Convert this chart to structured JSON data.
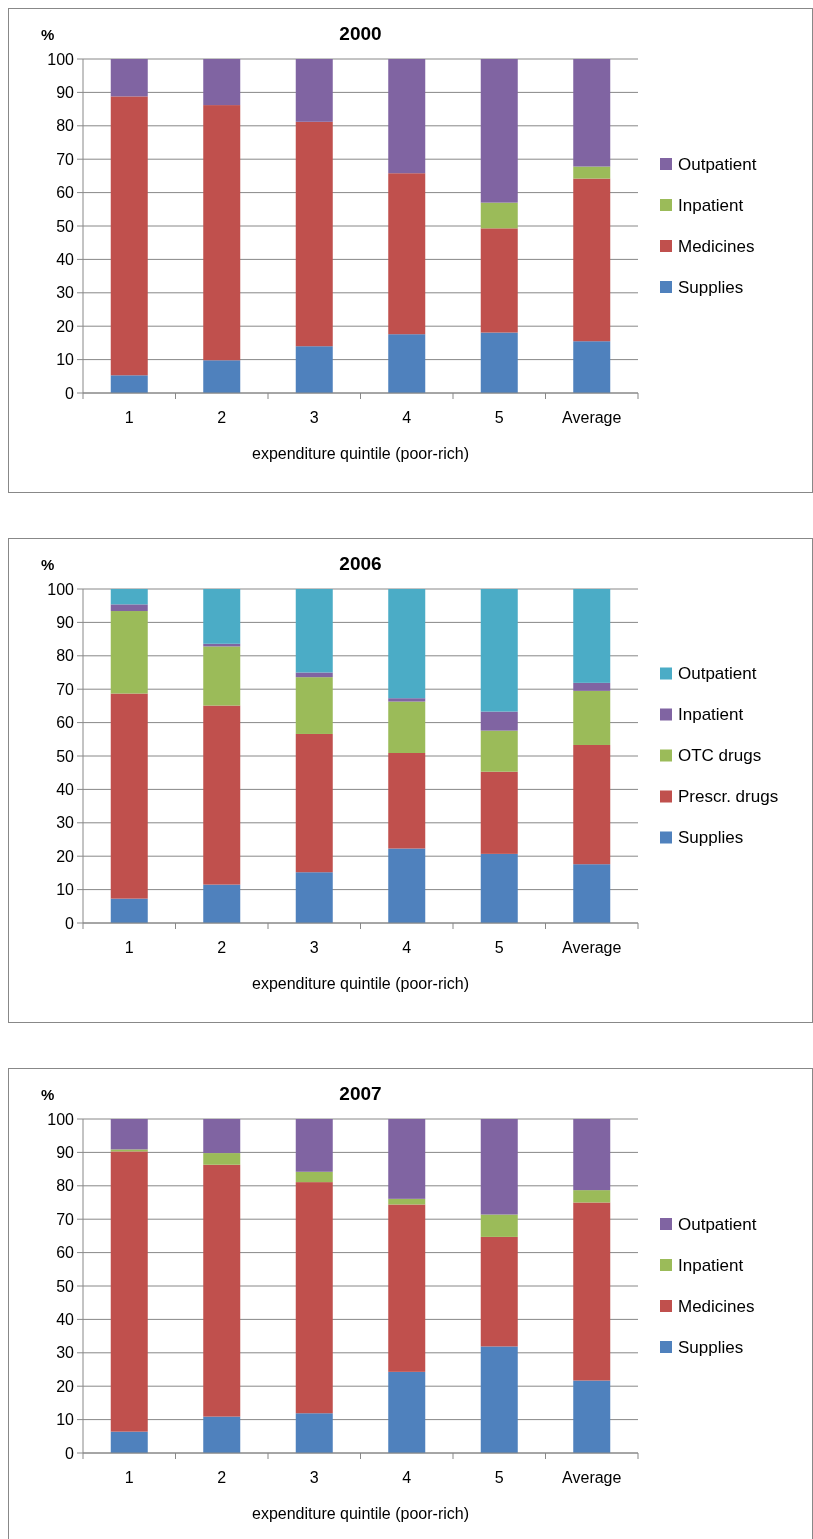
{
  "chart_data": [
    {
      "type": "bar",
      "title": "2000",
      "ylabel": "%",
      "xlabel": "expenditure quintile (poor-rich)",
      "categories": [
        "1",
        "2",
        "3",
        "4",
        "5",
        "Average"
      ],
      "stacked": true,
      "ylim": [
        0,
        100
      ],
      "yticks": [
        0,
        10,
        20,
        30,
        40,
        50,
        60,
        70,
        80,
        90,
        100
      ],
      "grid": "y",
      "legend": "right",
      "series": [
        {
          "name": "Supplies",
          "color": "#4f81bd",
          "values": [
            5.3,
            9.8,
            14,
            17.6,
            18.1,
            15.5
          ]
        },
        {
          "name": "Medicines",
          "color": "#c0504d",
          "values": [
            83.5,
            76.4,
            67.2,
            48.2,
            31.2,
            48.7
          ]
        },
        {
          "name": "Inpatient",
          "color": "#9bbb59",
          "values": [
            0,
            0,
            0,
            0,
            7.7,
            3.6
          ]
        },
        {
          "name": "Outpatient",
          "color": "#8064a2",
          "values": [
            11.2,
            13.8,
            18.8,
            34.2,
            43,
            32.2
          ]
        }
      ]
    },
    {
      "type": "bar",
      "title": "2006",
      "ylabel": "%",
      "xlabel": "expenditure quintile (poor-rich)",
      "categories": [
        "1",
        "2",
        "3",
        "4",
        "5",
        "Average"
      ],
      "stacked": true,
      "ylim": [
        0,
        100
      ],
      "yticks": [
        0,
        10,
        20,
        30,
        40,
        50,
        60,
        70,
        80,
        90,
        100
      ],
      "grid": "y",
      "legend": "right",
      "series": [
        {
          "name": "Supplies",
          "color": "#4f81bd",
          "values": [
            7.3,
            11.5,
            15.2,
            22.3,
            20.7,
            17.6
          ]
        },
        {
          "name": "Prescr. drugs",
          "color": "#c0504d",
          "values": [
            61.4,
            53.6,
            41.4,
            28.6,
            24.6,
            35.7
          ]
        },
        {
          "name": "OTC drugs",
          "color": "#9bbb59",
          "values": [
            24.7,
            17.7,
            17,
            15.4,
            12.3,
            16.2
          ]
        },
        {
          "name": "Inpatient",
          "color": "#8064a2",
          "values": [
            2,
            0.8,
            1.4,
            1,
            5.7,
            2.4
          ]
        },
        {
          "name": "Outpatient",
          "color": "#4bacc6",
          "values": [
            4.6,
            16.4,
            25,
            32.7,
            36.7,
            28.1
          ]
        }
      ]
    },
    {
      "type": "bar",
      "title": "2007",
      "ylabel": "%",
      "xlabel": "expenditure quintile (poor-rich)",
      "categories": [
        "1",
        "2",
        "3",
        "4",
        "5",
        "Average"
      ],
      "stacked": true,
      "ylim": [
        0,
        100
      ],
      "yticks": [
        0,
        10,
        20,
        30,
        40,
        50,
        60,
        70,
        80,
        90,
        100
      ],
      "grid": "y",
      "legend": "right",
      "series": [
        {
          "name": "Supplies",
          "color": "#4f81bd",
          "values": [
            6.4,
            10.9,
            11.9,
            24.3,
            31.9,
            21.7
          ]
        },
        {
          "name": "Medicines",
          "color": "#c0504d",
          "values": [
            83.9,
            75.4,
            69.2,
            50.1,
            32.8,
            53.3
          ]
        },
        {
          "name": "Inpatient",
          "color": "#9bbb59",
          "values": [
            0.6,
            3.5,
            3.1,
            1.7,
            6.7,
            3.7
          ]
        },
        {
          "name": "Outpatient",
          "color": "#8064a2",
          "values": [
            9.1,
            10.2,
            15.8,
            23.9,
            28.6,
            21.3
          ]
        }
      ]
    }
  ]
}
